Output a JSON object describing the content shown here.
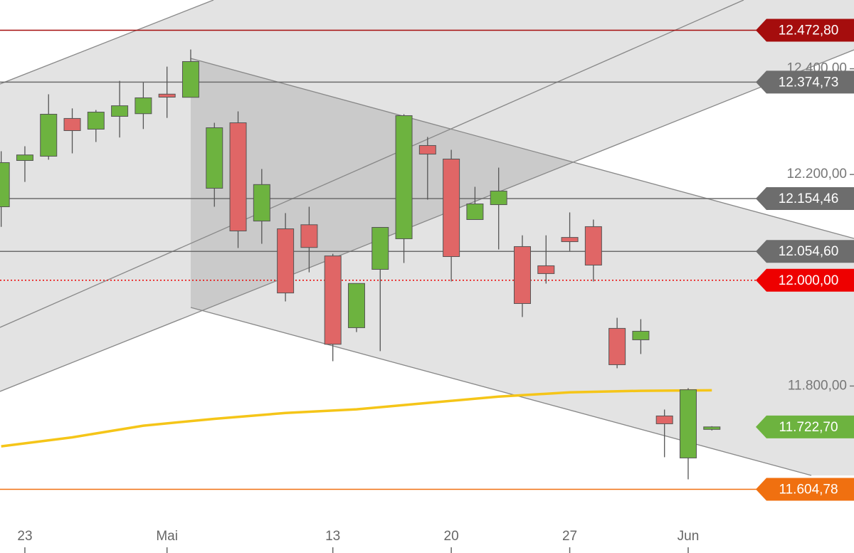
{
  "chart_data": {
    "type": "candlestick",
    "up_color": "#6db33f",
    "down_color": "#e06666",
    "x": [
      0,
      1,
      2,
      3,
      4,
      5,
      6,
      7,
      8,
      9,
      10,
      11,
      12,
      13,
      14,
      15,
      16,
      17,
      18,
      19,
      20,
      21,
      22,
      23,
      24,
      25,
      26,
      27,
      28,
      29,
      30
    ],
    "open": [
      12139,
      12226.5,
      12234.6,
      12306,
      12285.7,
      12310,
      12315,
      12352,
      12346,
      12174,
      12297.8,
      12112,
      12097.3,
      12105,
      12046,
      11910.3,
      12020.6,
      12078.5,
      12254.8,
      12229.2,
      12114.8,
      12143,
      12063.7,
      12027.4,
      12081,
      12101.4,
      11909,
      11887.4,
      11743.4,
      11664,
      11718
    ],
    "high": [
      12244,
      12253.4,
      12351.7,
      12325,
      12322,
      12377,
      12374,
      12404,
      12436.4,
      12297.8,
      12319.4,
      12210.4,
      12127,
      12139,
      12050,
      11994,
      12100,
      12314,
      12271,
      12246.7,
      12176.7,
      12213,
      12085,
      12085,
      12128.3,
      12114.8,
      11929,
      11926.4,
      11755.5,
      11795.9,
      11724
    ],
    "low": [
      12101,
      12186,
      12228,
      12240,
      12261.5,
      12270,
      12286,
      12307,
      12346,
      12139,
      12061,
      12069,
      11960,
      12015,
      11847,
      11902,
      11866,
      12032.7,
      12152.5,
      11997.7,
      12114.8,
      12058.3,
      11930.5,
      11993.7,
      12055.6,
      11997.7,
      11833.6,
      11860.5,
      11665.4,
      11623.6,
      11716
    ],
    "close": [
      12222.5,
      12237,
      12314,
      12283,
      12318,
      12330,
      12345,
      12346.3,
      12413.6,
      12288.4,
      12093.3,
      12181,
      11976,
      12062,
      11879,
      11994,
      12100,
      12311.3,
      12238.6,
      12044.8,
      12144.4,
      12168.7,
      11956,
      12012.6,
      12073,
      12028.7,
      11840.3,
      11903.6,
      11728.6,
      11793,
      11722.7
    ],
    "moving_average": {
      "color": "#f5c518",
      "x": [
        0,
        3,
        6,
        9,
        12,
        15,
        18,
        21,
        24,
        27,
        30
      ],
      "values": [
        11686,
        11703,
        11725,
        11738,
        11749,
        11756,
        11768,
        11780,
        11788,
        11791,
        11792
      ]
    },
    "xlim": [
      -0.05,
      36
    ],
    "ylim": [
      11530,
      12530
    ],
    "xticks": [
      {
        "value": 1,
        "label": "23"
      },
      {
        "value": 7,
        "label": "Mai"
      },
      {
        "value": 14,
        "label": "13"
      },
      {
        "value": 19,
        "label": "20"
      },
      {
        "value": 24,
        "label": "27"
      },
      {
        "value": 29,
        "label": "Jun"
      }
    ],
    "yticks": [
      {
        "value": 12400,
        "label": "12.400,00"
      },
      {
        "value": 12200,
        "label": "12.200,00"
      },
      {
        "value": 11800,
        "label": "11.800,00"
      }
    ],
    "levels": [
      {
        "value": 12472.8,
        "label": "12.472,80",
        "color": "#a50d0d",
        "style": "solid"
      },
      {
        "value": 12374.73,
        "label": "12.374,73",
        "color": "#6d6d6d",
        "style": "solid"
      },
      {
        "value": 12154.46,
        "label": "12.154,46",
        "color": "#6d6d6d",
        "style": "solid"
      },
      {
        "value": 12054.6,
        "label": "12.054,60",
        "color": "#6d6d6d",
        "style": "solid"
      },
      {
        "value": 12000,
        "label": "12.000,00",
        "color": "#ee0000",
        "style": "dotted"
      },
      {
        "value": 11722.7,
        "label": "11.722,70",
        "color": "#6db33f",
        "style": "none"
      },
      {
        "value": 11604.78,
        "label": "11.604,78",
        "color": "#f07010",
        "style": "solid"
      }
    ]
  }
}
